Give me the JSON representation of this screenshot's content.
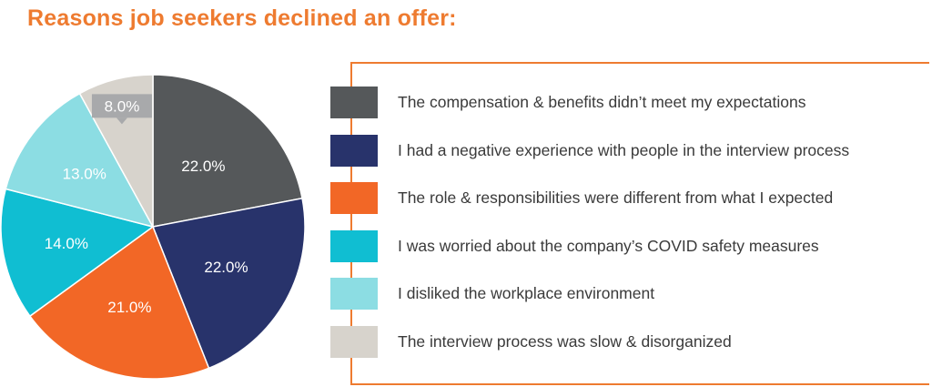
{
  "title": "Reasons job seekers declined an offer:",
  "colors": {
    "accent": "#ee7b30"
  },
  "chart_data": {
    "type": "pie",
    "title": "Reasons job seekers declined an offer:",
    "start_angle_deg": 0,
    "direction": "clockwise",
    "slices": [
      {
        "label": "The compensation & benefits didn’t meet my expectations",
        "value": 22.0,
        "value_label": "22.0%",
        "color": "#55585a"
      },
      {
        "label": "I had a negative experience with people in the interview process",
        "value": 22.0,
        "value_label": "22.0%",
        "color": "#28336b"
      },
      {
        "label": "The role & responsibilities were different from what I expected",
        "value": 21.0,
        "value_label": "21.0%",
        "color": "#f26726"
      },
      {
        "label": "I was worried about the company’s COVID safety measures",
        "value": 14.0,
        "value_label": "14.0%",
        "color": "#10bed2"
      },
      {
        "label": "I disliked the workplace environment",
        "value": 13.0,
        "value_label": "13.0%",
        "color": "#8cdde3"
      },
      {
        "label": "The interview process was slow & disorganized",
        "value": 8.0,
        "value_label": "8.0%",
        "color": "#d7d3cc"
      }
    ],
    "legend": "right"
  }
}
